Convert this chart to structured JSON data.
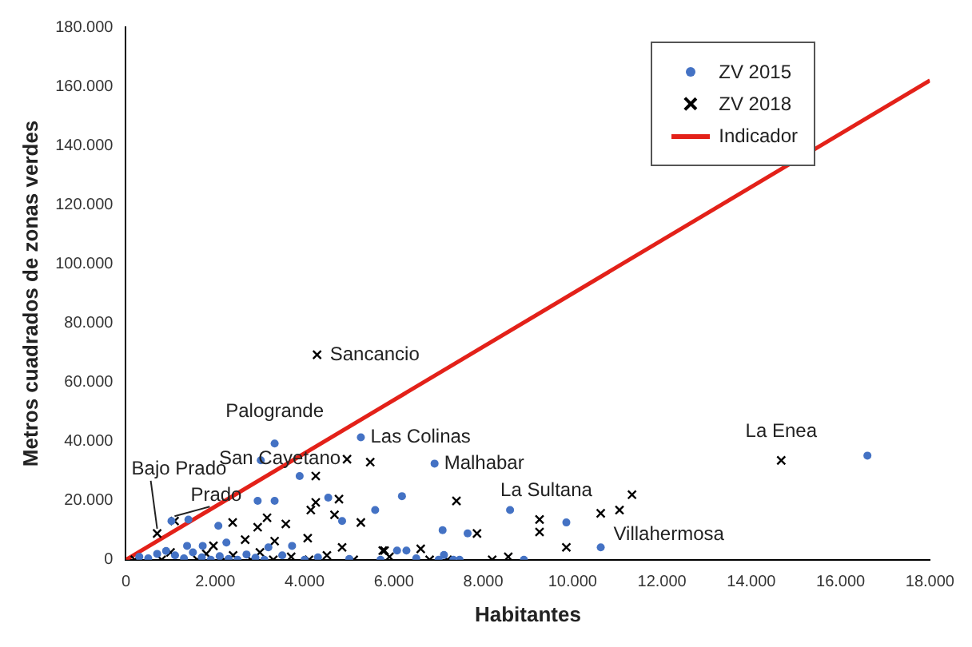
{
  "chart_data": {
    "type": "scatter",
    "xlabel": "Habitantes",
    "ylabel": "Metros cuadrados de zonas verdes",
    "xlim": [
      0,
      18000
    ],
    "ylim": [
      0,
      180000
    ],
    "xticks": [
      0,
      {
        "value": 2000,
        "label": "2.000"
      },
      {
        "value": 4000,
        "label": "4.000"
      },
      {
        "value": 6000,
        "label": "6.000"
      },
      {
        "value": 8000,
        "label": "8.000"
      },
      {
        "value": 10000,
        "label": "10.000"
      },
      {
        "value": 12000,
        "label": "12.000"
      },
      {
        "value": 14000,
        "label": "14.000"
      },
      {
        "value": 16000,
        "label": "16.000"
      },
      {
        "value": 18000,
        "label": "18.000"
      }
    ],
    "yticks": [
      0,
      {
        "value": 20000,
        "label": "20.000"
      },
      {
        "value": 40000,
        "label": "40.000"
      },
      {
        "value": 60000,
        "label": "60.000"
      },
      {
        "value": 80000,
        "label": "80.000"
      },
      {
        "value": 100000,
        "label": "100.000"
      },
      {
        "value": 120000,
        "label": "120.000"
      },
      {
        "value": 140000,
        "label": "140.000"
      },
      {
        "value": 160000,
        "label": "160.000"
      },
      {
        "value": 180000,
        "label": "180.000"
      }
    ],
    "grid": false,
    "legend": "top right",
    "series": [
      {
        "name": "ZV 2015",
        "type": "scatter",
        "marker": "circle",
        "color": "#4472c4",
        "x": [
          3330,
          3020,
          3890,
          2950,
          3330,
          2070,
          4530,
          5580,
          6180,
          1400,
          1020,
          2250,
          1720,
          1370,
          3190,
          3720,
          4840,
          5260,
          6910,
          7090,
          7650,
          8600,
          9860,
          10630,
          6070,
          6280,
          7120,
          7330,
          7470,
          8910,
          16600,
          300,
          500,
          700,
          900,
          1100,
          1300,
          1500,
          1700,
          1900,
          2100,
          2300,
          2500,
          2700,
          2900,
          3100,
          3500,
          4000,
          4300,
          5000,
          5700,
          6500,
          7000
        ],
        "values": [
          39300,
          33600,
          28300,
          19900,
          19900,
          11500,
          21000,
          16800,
          21500,
          13600,
          13100,
          5800,
          4700,
          4700,
          4200,
          4700,
          13100,
          41400,
          32500,
          10000,
          8900,
          16800,
          12600,
          4200,
          3100,
          3100,
          1600,
          0,
          0,
          0,
          35200,
          1000,
          500,
          2000,
          3000,
          1500,
          500,
          2500,
          800,
          0,
          1200,
          300,
          0,
          1800,
          700,
          0,
          1500,
          0,
          800,
          300,
          0,
          500,
          0
        ]
      },
      {
        "name": "ZV 2018",
        "type": "scatter",
        "marker": "cross",
        "color": "#000000",
        "x": [
          4280,
          14670,
          4950,
          5470,
          4250,
          4250,
          4770,
          4670,
          4140,
          5260,
          2390,
          1090,
          700,
          3160,
          2950,
          3580,
          2670,
          3330,
          4070,
          4840,
          5790,
          1960,
          7400,
          7860,
          9260,
          9260,
          10630,
          11050,
          11330,
          9860,
          8560,
          6600,
          5750,
          200,
          800,
          1000,
          1600,
          1800,
          2200,
          2400,
          2800,
          3000,
          3300,
          3700,
          4100,
          4500,
          5100,
          5900,
          6800,
          7200,
          8200
        ],
        "values": [
          69300,
          33600,
          34000,
          33000,
          28300,
          19400,
          20500,
          15200,
          16800,
          12600,
          12600,
          13100,
          8900,
          14200,
          11000,
          12100,
          6800,
          6300,
          7300,
          4200,
          3100,
          4700,
          19900,
          8900,
          13600,
          9400,
          15700,
          16800,
          22000,
          4200,
          1000,
          3700,
          3100,
          0,
          0,
          2500,
          0,
          2000,
          0,
          1500,
          0,
          2500,
          0,
          1000,
          0,
          1500,
          0,
          1000,
          0,
          0,
          0
        ]
      },
      {
        "name": "Indicador",
        "type": "line",
        "marker": "none",
        "line_style": "solid",
        "color": "#e32119",
        "x": [
          0,
          18000
        ],
        "values": [
          0,
          162000
        ]
      }
    ],
    "annotations": [
      {
        "text": "Sancancio",
        "x": 4280,
        "y": 69300
      },
      {
        "text": "Palogrande",
        "x": 3330,
        "y": 39300
      },
      {
        "text": "San Cayetano",
        "x": 4950,
        "y": 34000
      },
      {
        "text": "Las Colinas",
        "x": 5260,
        "y": 41400
      },
      {
        "text": "Malhabar",
        "x": 6910,
        "y": 32500
      },
      {
        "text": "La Sultana",
        "x": 8600,
        "y": 16800
      },
      {
        "text": "Villahermosa",
        "x": 10630,
        "y": 4200
      },
      {
        "text": "La Enea",
        "x": 14670,
        "y": 33600
      },
      {
        "text": "Bajo Prado",
        "x": 700,
        "y": 8900
      },
      {
        "text": "Prado",
        "x": 1090,
        "y": 13100
      }
    ]
  }
}
